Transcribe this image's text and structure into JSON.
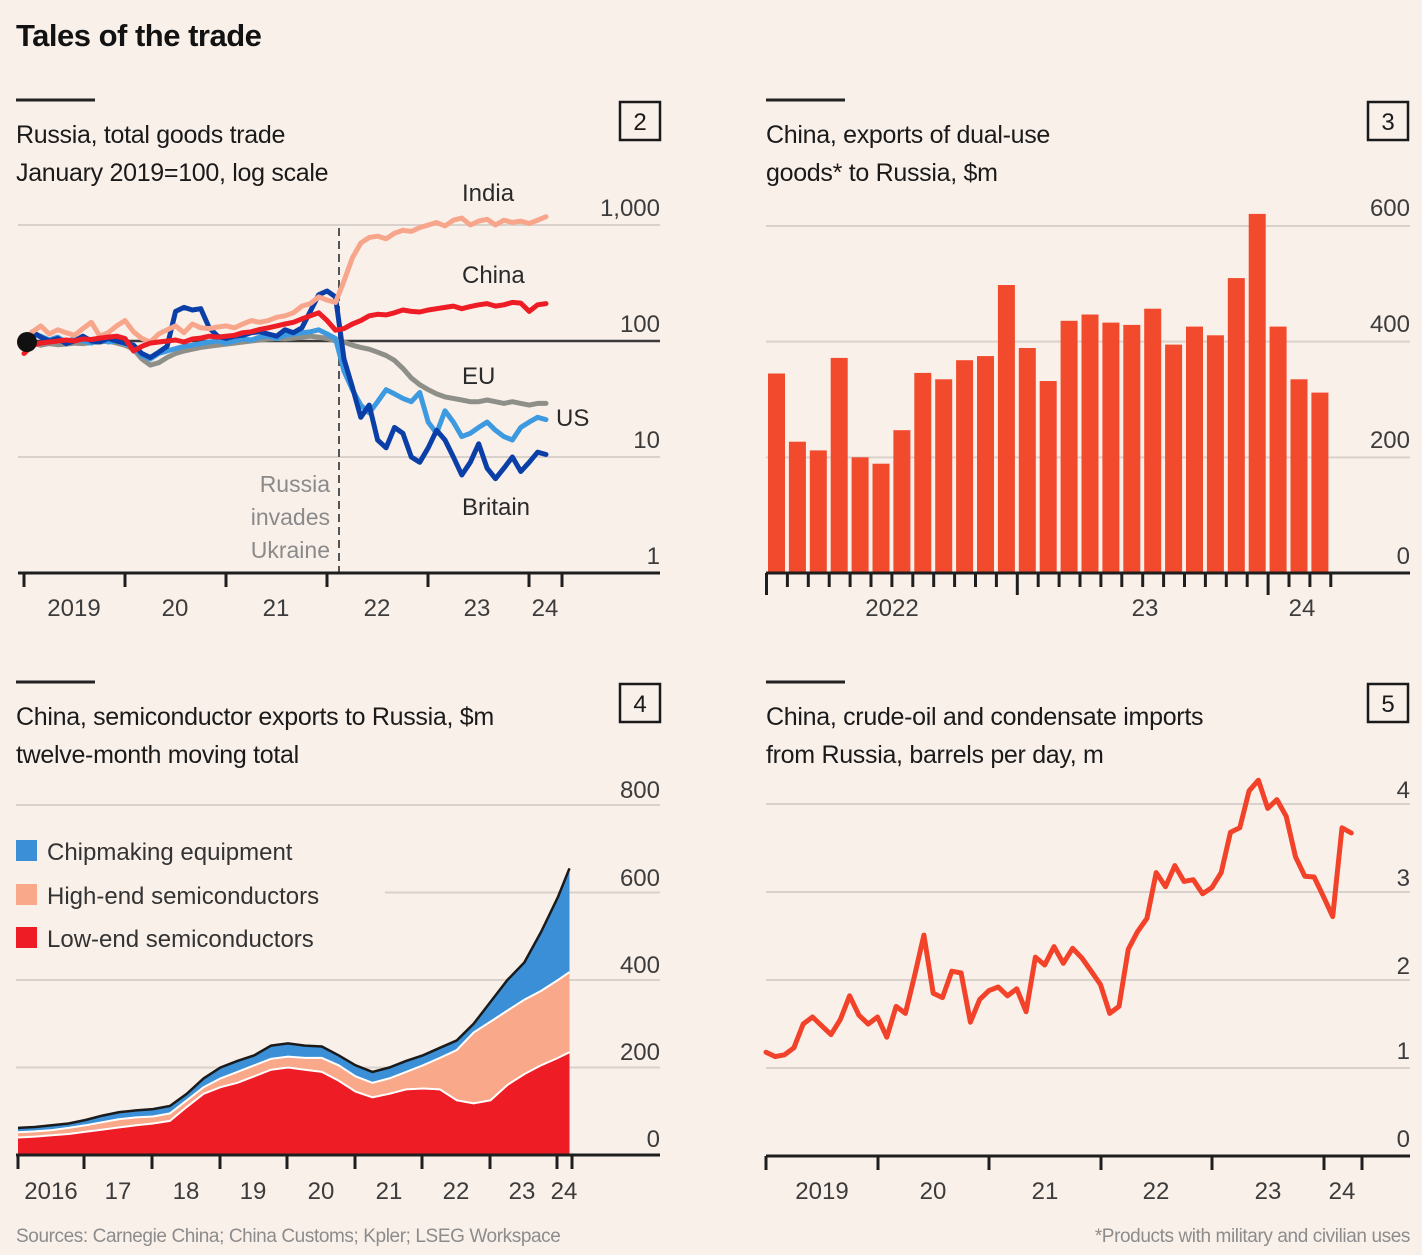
{
  "page": {
    "title": "Tales of the trade",
    "sources": "Sources: Carnegie China; China Customs; Kpler; LSEG Workspace",
    "footnote": "*Products with military and civilian uses"
  },
  "colors": {
    "background": "#faf0ea",
    "india": "#f8a68b",
    "china": "#ee1c25",
    "eu": "#8f8f8a",
    "us": "#3d9ae0",
    "britain": "#0a3fa8",
    "bars": "#f24a2c",
    "oil_line": "#f2432a",
    "chipmaking": "#3a8fd6",
    "high_end": "#f9a88a",
    "low_end": "#ee1c25"
  },
  "chart_data": [
    {
      "panel_number": "2",
      "type": "line",
      "title_line1": "Russia, total goods trade",
      "title_line2": "January 2019=100, log scale",
      "yscale": "log",
      "ylim": [
        1,
        1000
      ],
      "y_ticks": [
        "1,000",
        "100",
        "10",
        "1"
      ],
      "y_tick_values": [
        1000,
        100,
        10,
        1
      ],
      "x_ticks": [
        "2019",
        "20",
        "21",
        "22",
        "23",
        "24"
      ],
      "x_start": "2019-01",
      "frequency": "monthly",
      "annotation": {
        "lines": [
          "Russia",
          "invades",
          "Ukraine"
        ],
        "date": "2022-02"
      },
      "series": [
        {
          "name": "India",
          "color_key": "india",
          "values": [
            100,
            120,
            135,
            115,
            125,
            118,
            112,
            128,
            145,
            110,
            118,
            135,
            150,
            120,
            105,
            98,
            115,
            125,
            135,
            118,
            140,
            130,
            128,
            132,
            135,
            130,
            140,
            150,
            145,
            150,
            160,
            165,
            175,
            200,
            210,
            240,
            225,
            215,
            330,
            520,
            700,
            780,
            800,
            760,
            850,
            900,
            880,
            950,
            1000,
            1050,
            980,
            1100,
            1150,
            1000,
            1080,
            1120,
            1000,
            1100,
            1050,
            1080,
            1030,
            1100,
            1180
          ]
        },
        {
          "name": "China",
          "color_key": "china",
          "values": [
            78,
            92,
            96,
            98,
            100,
            102,
            100,
            104,
            103,
            106,
            108,
            110,
            105,
            82,
            90,
            96,
            98,
            100,
            102,
            98,
            104,
            106,
            110,
            108,
            110,
            112,
            118,
            120,
            126,
            130,
            135,
            140,
            145,
            155,
            165,
            175,
            150,
            124,
            128,
            140,
            150,
            165,
            170,
            168,
            175,
            185,
            180,
            178,
            185,
            190,
            195,
            200,
            190,
            198,
            205,
            210,
            200,
            205,
            215,
            212,
            180,
            205,
            210
          ]
        },
        {
          "name": "EU",
          "color_key": "eu",
          "values": [
            100,
            96,
            92,
            95,
            93,
            94,
            96,
            95,
            97,
            98,
            100,
            96,
            92,
            85,
            70,
            62,
            65,
            72,
            78,
            82,
            85,
            88,
            90,
            92,
            94,
            96,
            98,
            100,
            102,
            104,
            105,
            104,
            106,
            108,
            110,
            108,
            105,
            100,
            98,
            92,
            88,
            85,
            80,
            75,
            68,
            58,
            48,
            42,
            38,
            35,
            33,
            32,
            31,
            30,
            30,
            31,
            30,
            29,
            30,
            29,
            28,
            29,
            29
          ]
        },
        {
          "name": "US",
          "color_key": "us",
          "values": [
            100,
            115,
            110,
            102,
            108,
            98,
            105,
            100,
            96,
            104,
            98,
            100,
            95,
            88,
            75,
            70,
            78,
            82,
            86,
            90,
            92,
            95,
            98,
            100,
            96,
            100,
            104,
            102,
            108,
            110,
            105,
            112,
            115,
            118,
            120,
            125,
            115,
            105,
            55,
            38,
            28,
            24,
            30,
            38,
            35,
            32,
            30,
            36,
            20,
            16,
            25,
            20,
            15,
            16,
            18,
            20,
            17,
            15,
            14,
            18,
            20,
            22,
            21
          ]
        },
        {
          "name": "Britain",
          "color_key": "britain",
          "values": [
            100,
            120,
            108,
            100,
            105,
            95,
            100,
            110,
            100,
            98,
            105,
            100,
            96,
            92,
            78,
            72,
            80,
            90,
            180,
            195,
            185,
            190,
            130,
            110,
            105,
            110,
            112,
            118,
            120,
            115,
            110,
            125,
            118,
            130,
            180,
            250,
            270,
            240,
            70,
            40,
            22,
            28,
            14,
            12,
            18,
            16,
            10,
            9,
            12,
            17,
            14,
            10,
            7,
            9,
            13,
            8,
            6.5,
            8,
            10,
            7.5,
            9,
            11,
            10.5
          ]
        }
      ]
    },
    {
      "panel_number": "3",
      "type": "bar",
      "title_line1": "China, exports of dual-use",
      "title_line2": "goods* to Russia, $m",
      "ylim": [
        0,
        600
      ],
      "y_ticks": [
        "600",
        "400",
        "200",
        "0"
      ],
      "y_tick_values": [
        600,
        400,
        200,
        0
      ],
      "x_ticks": [
        "2022",
        "23",
        "24"
      ],
      "x_start": "2022-01",
      "frequency": "monthly",
      "values": [
        345,
        227,
        212,
        372,
        200,
        189,
        247,
        346,
        335,
        368,
        375,
        498,
        389,
        332,
        436,
        447,
        433,
        429,
        457,
        395,
        426,
        411,
        510,
        621,
        426,
        335,
        312
      ]
    },
    {
      "panel_number": "4",
      "type": "area",
      "stacked": true,
      "title_line1": "China, semiconductor exports to Russia, $m",
      "title_line2": "twelve-month moving total",
      "ylim": [
        0,
        800
      ],
      "y_ticks": [
        "800",
        "600",
        "400",
        "200",
        "0"
      ],
      "y_tick_values": [
        800,
        600,
        400,
        200,
        0
      ],
      "x_ticks": [
        "2016",
        "17",
        "18",
        "19",
        "20",
        "21",
        "22",
        "23",
        "24"
      ],
      "x_years": [
        2016.0,
        2016.25,
        2016.5,
        2016.75,
        2017.0,
        2017.25,
        2017.5,
        2017.75,
        2018.0,
        2018.25,
        2018.5,
        2018.75,
        2019.0,
        2019.25,
        2019.5,
        2019.75,
        2020.0,
        2020.25,
        2020.5,
        2020.75,
        2021.0,
        2021.25,
        2021.5,
        2021.75,
        2022.0,
        2022.25,
        2022.5,
        2022.75,
        2023.0,
        2023.25,
        2023.5,
        2023.75,
        2024.0,
        2024.17
      ],
      "legend": [
        "Chipmaking equipment",
        "High-end semiconductors",
        "Low-end semiconductors"
      ],
      "series": [
        {
          "name": "Low-end semiconductors",
          "color_key": "low_end",
          "values": [
            40,
            42,
            45,
            48,
            53,
            58,
            63,
            68,
            72,
            78,
            110,
            140,
            155,
            165,
            180,
            195,
            200,
            195,
            190,
            170,
            145,
            132,
            140,
            150,
            152,
            150,
            125,
            118,
            125,
            160,
            185,
            205,
            222,
            235
          ]
        },
        {
          "name": "High-end semiconductors",
          "color_key": "high_end",
          "values": [
            12,
            12,
            12,
            14,
            15,
            17,
            19,
            18,
            16,
            17,
            15,
            15,
            20,
            25,
            25,
            25,
            25,
            27,
            32,
            35,
            35,
            33,
            35,
            40,
            53,
            72,
            115,
            162,
            180,
            170,
            170,
            170,
            178,
            183
          ]
        },
        {
          "name": "Chipmaking equipment",
          "color_key": "chipmaking",
          "values": [
            10,
            10,
            11,
            10,
            12,
            15,
            16,
            16,
            17,
            17,
            15,
            20,
            25,
            25,
            23,
            30,
            30,
            28,
            26,
            23,
            25,
            25,
            25,
            25,
            23,
            23,
            22,
            20,
            45,
            70,
            85,
            135,
            190,
            237
          ]
        }
      ]
    },
    {
      "panel_number": "5",
      "type": "line",
      "title_line1": "China, crude-oil and condensate imports",
      "title_line2": "from Russia, barrels per day, m",
      "ylim": [
        0,
        4
      ],
      "y_ticks": [
        "4",
        "3",
        "2",
        "1",
        "0"
      ],
      "y_tick_values": [
        4,
        3,
        2,
        1,
        0
      ],
      "x_ticks": [
        "2019",
        "20",
        "21",
        "22",
        "23",
        "24"
      ],
      "x_start": "2019-01",
      "frequency": "monthly",
      "series": [
        {
          "name": "Crude-oil and condensate imports",
          "color_key": "oil_line",
          "values": [
            1.18,
            1.13,
            1.15,
            1.23,
            1.5,
            1.58,
            1.48,
            1.38,
            1.55,
            1.82,
            1.6,
            1.5,
            1.58,
            1.35,
            1.7,
            1.62,
            2.05,
            2.51,
            1.85,
            1.8,
            2.1,
            2.08,
            1.52,
            1.78,
            1.88,
            1.92,
            1.82,
            1.9,
            1.64,
            2.26,
            2.17,
            2.38,
            2.19,
            2.36,
            2.25,
            2.1,
            1.95,
            1.62,
            1.7,
            2.35,
            2.55,
            2.7,
            3.22,
            3.06,
            3.3,
            3.12,
            3.14,
            2.98,
            3.05,
            3.22,
            3.68,
            3.73,
            4.15,
            4.27,
            3.95,
            4.05,
            3.86,
            3.4,
            3.18,
            3.17,
            2.95,
            2.72,
            3.73,
            3.67
          ]
        }
      ]
    }
  ]
}
